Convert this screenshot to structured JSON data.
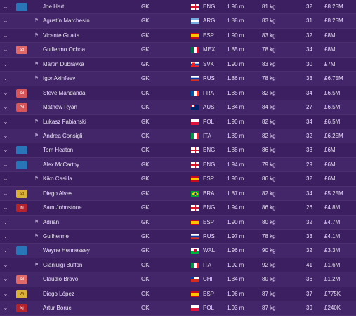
{
  "players": [
    {
      "name": "Joe Hart",
      "pos": "GK",
      "nat": "ENG",
      "height": "1.96 m",
      "weight": "81 kg",
      "age": "32",
      "value": "£8.25M",
      "badge": "blue",
      "badge_text": "",
      "flag": "eng"
    },
    {
      "name": "Agustín Marchesín",
      "pos": "GK",
      "nat": "ARG",
      "height": "1.88 m",
      "weight": "83 kg",
      "age": "31",
      "value": "£8.25M",
      "badge": "",
      "badge_text": "",
      "flag": "arg"
    },
    {
      "name": "Vicente Guaita",
      "pos": "GK",
      "nat": "ESP",
      "height": "1.90 m",
      "weight": "83 kg",
      "age": "32",
      "value": "£8M",
      "badge": "",
      "badge_text": "",
      "flag": "esp"
    },
    {
      "name": "Guillermo Ochoa",
      "pos": "GK",
      "nat": "MEX",
      "height": "1.85 m",
      "weight": "78 kg",
      "age": "34",
      "value": "£8M",
      "badge": "redlight",
      "badge_text": "Sd",
      "flag": "mex"
    },
    {
      "name": "Martin Dubravka",
      "pos": "GK",
      "nat": "SVK",
      "height": "1.90 m",
      "weight": "83 kg",
      "age": "30",
      "value": "£7M",
      "badge": "",
      "badge_text": "",
      "flag": "svk"
    },
    {
      "name": "Igor Akinfeev",
      "pos": "GK",
      "nat": "RUS",
      "height": "1.86 m",
      "weight": "78 kg",
      "age": "33",
      "value": "£6.75M",
      "badge": "",
      "badge_text": "",
      "flag": "rus"
    },
    {
      "name": "Steve Mandanda",
      "pos": "GK",
      "nat": "FRA",
      "height": "1.85 m",
      "weight": "82 kg",
      "age": "34",
      "value": "£6.5M",
      "badge": "red",
      "badge_text": "Sd",
      "flag": "fra"
    },
    {
      "name": "Mathew Ryan",
      "pos": "GK",
      "nat": "AUS",
      "height": "1.84 m",
      "weight": "84 kg",
      "age": "27",
      "value": "£6.5M",
      "badge": "red",
      "badge_text": "Pd",
      "flag": "aus"
    },
    {
      "name": "Lukasz Fabianski",
      "pos": "GK",
      "nat": "POL",
      "height": "1.90 m",
      "weight": "82 kg",
      "age": "34",
      "value": "£6.5M",
      "badge": "",
      "badge_text": "",
      "flag": "pol"
    },
    {
      "name": "Andrea Consigli",
      "pos": "GK",
      "nat": "ITA",
      "height": "1.89 m",
      "weight": "82 kg",
      "age": "32",
      "value": "£6.25M",
      "badge": "",
      "badge_text": "",
      "flag": "ita"
    },
    {
      "name": "Tom Heaton",
      "pos": "GK",
      "nat": "ENG",
      "height": "1.88 m",
      "weight": "86 kg",
      "age": "33",
      "value": "£6M",
      "badge": "blue",
      "badge_text": "",
      "flag": "eng"
    },
    {
      "name": "Alex McCarthy",
      "pos": "GK",
      "nat": "ENG",
      "height": "1.94 m",
      "weight": "79 kg",
      "age": "29",
      "value": "£6M",
      "badge": "blue",
      "badge_text": "",
      "flag": "eng"
    },
    {
      "name": "Kiko Casilla",
      "pos": "GK",
      "nat": "ESP",
      "height": "1.90 m",
      "weight": "86 kg",
      "age": "32",
      "value": "£6M",
      "badge": "",
      "badge_text": "",
      "flag": "esp"
    },
    {
      "name": "Diego Alves",
      "pos": "GK",
      "nat": "BRA",
      "height": "1.87 m",
      "weight": "82 kg",
      "age": "34",
      "value": "£5.25M",
      "badge": "yellow",
      "badge_text": "Sd",
      "flag": "bra"
    },
    {
      "name": "Sam Johnstone",
      "pos": "GK",
      "nat": "ENG",
      "height": "1.94 m",
      "weight": "86 kg",
      "age": "26",
      "value": "£4.8M",
      "badge": "darkred",
      "badge_text": "Inj",
      "flag": "eng"
    },
    {
      "name": "Adrián",
      "pos": "GK",
      "nat": "ESP",
      "height": "1.90 m",
      "weight": "80 kg",
      "age": "32",
      "value": "£4.7M",
      "badge": "",
      "badge_text": "",
      "flag": "esp"
    },
    {
      "name": "Guilherme",
      "pos": "GK",
      "nat": "RUS",
      "height": "1.97 m",
      "weight": "78 kg",
      "age": "33",
      "value": "£4.1M",
      "badge": "",
      "badge_text": "",
      "flag": "rus"
    },
    {
      "name": "Wayne Hennessey",
      "pos": "GK",
      "nat": "WAL",
      "height": "1.96 m",
      "weight": "90 kg",
      "age": "32",
      "value": "£3.3M",
      "badge": "blue",
      "badge_text": "",
      "flag": "wal"
    },
    {
      "name": "Gianluigi Buffon",
      "pos": "GK",
      "nat": "ITA",
      "height": "1.92 m",
      "weight": "92 kg",
      "age": "41",
      "value": "£1.6M",
      "badge": "",
      "badge_text": "",
      "flag": "ita"
    },
    {
      "name": "Claudio Bravo",
      "pos": "GK",
      "nat": "CHI",
      "height": "1.84 m",
      "weight": "80 kg",
      "age": "36",
      "value": "£1.2M",
      "badge": "redlight",
      "badge_text": "Sd",
      "flag": "chi"
    },
    {
      "name": "Diego López",
      "pos": "GK",
      "nat": "ESP",
      "height": "1.96 m",
      "weight": "87 kg",
      "age": "37",
      "value": "£775K",
      "badge": "yellow",
      "badge_text": "Wt",
      "flag": "esp"
    },
    {
      "name": "Artur Boruc",
      "pos": "GK",
      "nat": "POL",
      "height": "1.93 m",
      "weight": "87 kg",
      "age": "39",
      "value": "£240K",
      "badge": "darkred",
      "badge_text": "Inj",
      "flag": "pol"
    }
  ]
}
